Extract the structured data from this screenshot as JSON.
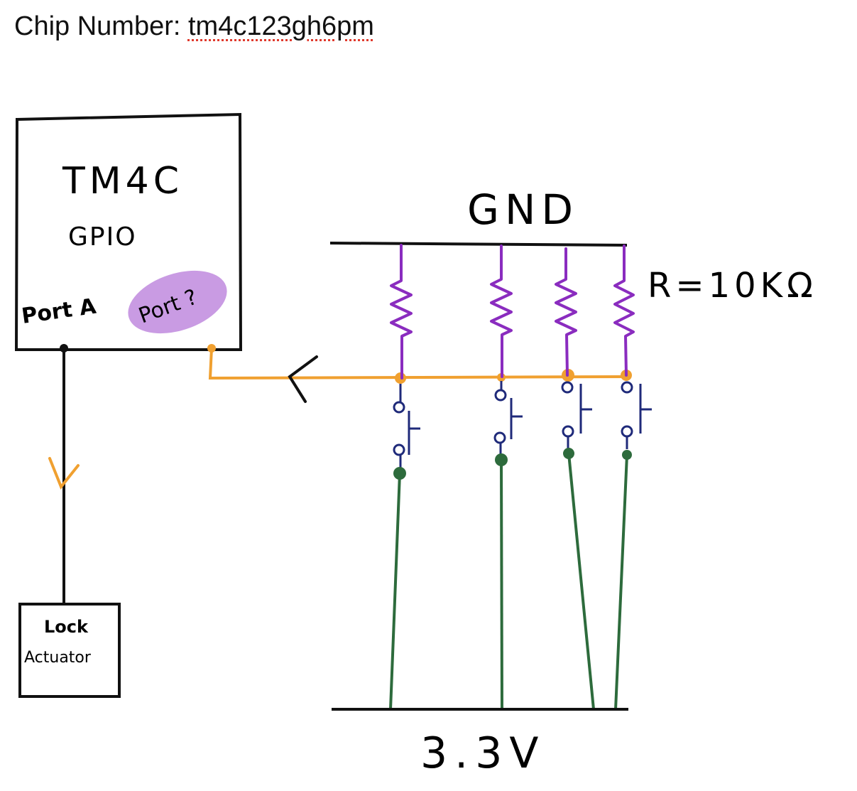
{
  "header": {
    "chip_label": "Chip Number:",
    "chip_value": "tm4c123gh6pm"
  },
  "diagram": {
    "mcu_title": "TM4C",
    "mcu_subtitle": "GPIO",
    "port_a_label": "Port A",
    "port_unknown_label": "Port ?",
    "gnd_label": "GND",
    "resistor_label": "R=10KΩ",
    "supply_label": "3.3V",
    "actuator_line1": "Lock",
    "actuator_line2": "Actuator",
    "button_count": 4
  },
  "colors": {
    "wire_black": "#111111",
    "signal_orange": "#f0a030",
    "resistor_purple": "#8a2cbf",
    "switch_navy": "#1f2a7a",
    "supply_green": "#2d6b3c",
    "highlight_lavender": "#c99be3",
    "spellcheck_red": "#e03a2e"
  }
}
